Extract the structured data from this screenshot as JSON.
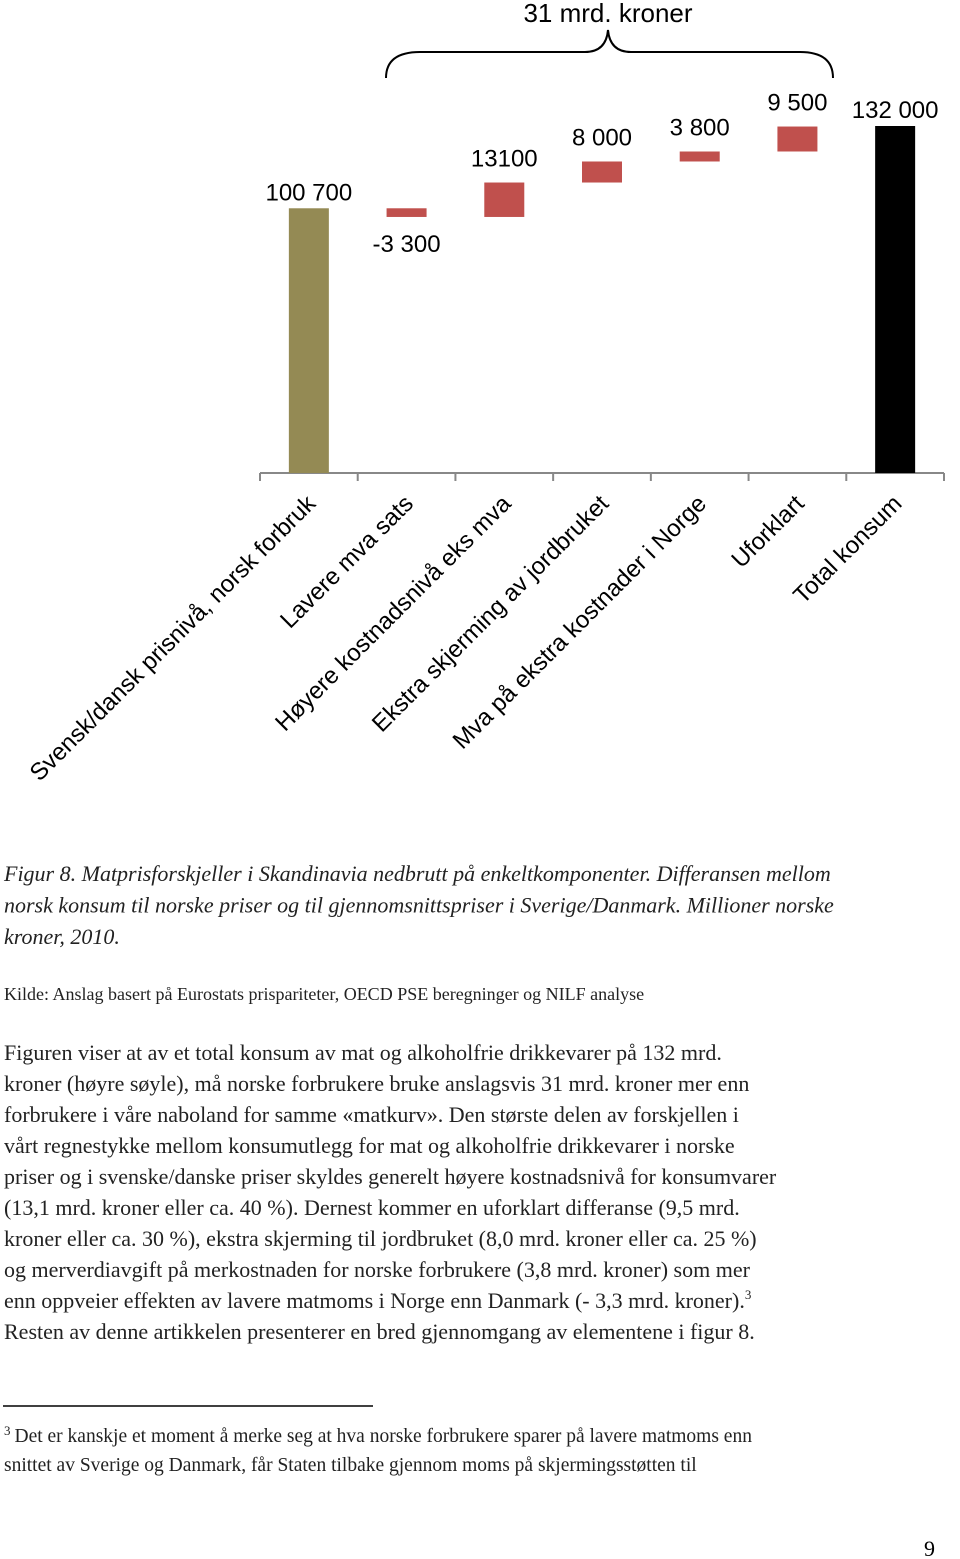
{
  "chart_data": {
    "type": "waterfall",
    "annotation": "31 mrd. kroner",
    "categories": [
      "Svensk/dansk prisnivå, norsk forbruk",
      "Lavere mva sats",
      "Høyere kostnadsnivå eks mva",
      "Ekstra skjerming av jordbruket",
      "Mva på ekstra kostnader i Norge",
      "Uforklart",
      "Total konsum"
    ],
    "values": [
      100700,
      -3300,
      13100,
      8000,
      3800,
      9500,
      132000
    ],
    "value_labels": [
      "100 700",
      "-3 300",
      "13100",
      "8 000",
      "3 800",
      "9 500",
      "132 000"
    ],
    "measure": [
      "absolute",
      "relative",
      "relative",
      "relative",
      "relative",
      "relative",
      "total"
    ],
    "colors": [
      "#948a54",
      "#c0504d",
      "#c0504d",
      "#c0504d",
      "#c0504d",
      "#c0504d",
      "#000000"
    ]
  },
  "caption": {
    "lines": [
      "Figur 8. Matprisforskjeller i Skandinavia nedbrutt på enkeltkomponenter. Differansen mellom",
      "norsk konsum til norske priser og til gjennomsnittspriser i Sverige/Danmark. Millioner norske",
      "kroner, 2010."
    ]
  },
  "source": "Kilde: Anslag basert på Eurostats prispariteter, OECD PSE beregninger og NILF analyse",
  "body": {
    "lines": [
      "Figuren viser at av et total konsum av mat og alkoholfrie drikkevarer på 132 mrd.",
      "kroner (høyre søyle), må norske forbrukere bruke anslagsvis 31 mrd. kroner mer enn",
      "forbrukere i våre naboland for samme «matkurv». Den største delen av forskjellen i",
      "vårt regnestykke mellom konsumutlegg for mat og alkoholfrie drikkevarer i norske",
      "priser og i svenske/danske priser skyldes generelt høyere kostnadsnivå for konsumvarer",
      "(13,1 mrd. kroner eller ca. 40 %). Dernest kommer en uforklart differanse (9,5 mrd.",
      "kroner eller ca. 30 %), ekstra skjerming til jordbruket (8,0 mrd. kroner eller ca. 25 %)",
      "og merverdiavgift på merkostnaden for norske forbrukere (3,8 mrd. kroner) som mer",
      "enn oppveier effekten av lavere matmoms i Norge enn Danmark (- 3,3 mrd. kroner).",
      "Resten av denne artikkelen presenterer en bred gjennomgang av elementene i figur 8."
    ],
    "footnote_ref": "3"
  },
  "footnote": {
    "marker": "3",
    "lines": [
      "Det er kanskje et moment å merke seg at hva norske forbrukere sparer på lavere matmoms enn",
      "snittet av Sverige og Danmark, får Staten tilbake gjennom moms på skjermingsstøtten til"
    ]
  },
  "page_number": "9"
}
